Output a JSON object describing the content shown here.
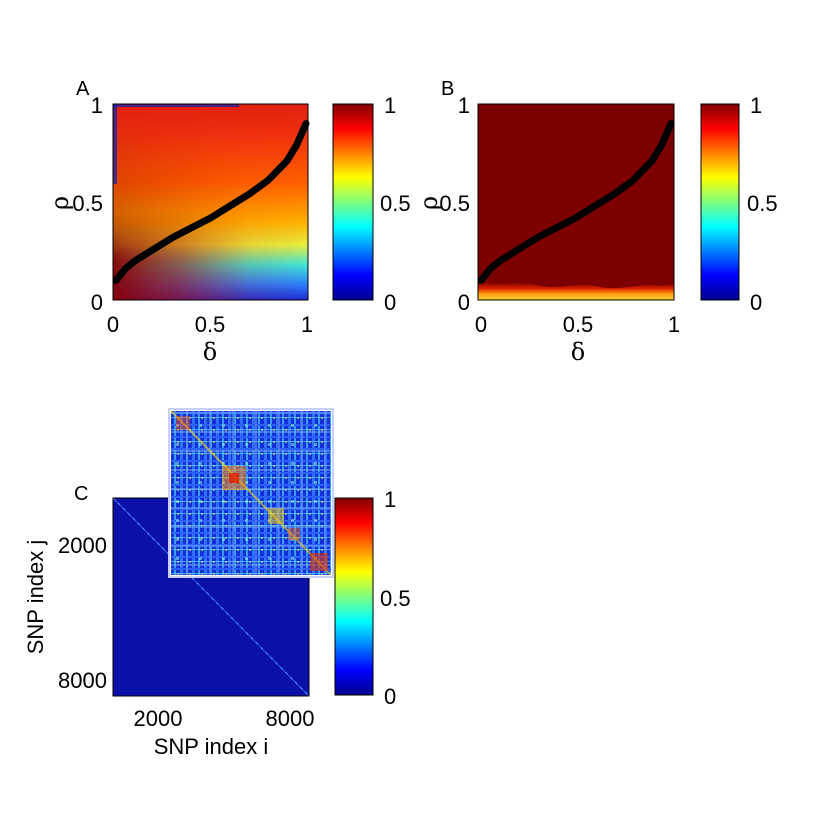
{
  "chart_data": [
    {
      "panel": "A",
      "type": "heatmap",
      "xlabel": "δ",
      "ylabel": "ρ",
      "xlim": [
        0,
        1
      ],
      "ylim": [
        0,
        1
      ],
      "x_ticks": [
        "0",
        "0.5",
        "1"
      ],
      "y_ticks": [
        "0",
        "0.5",
        "1"
      ],
      "colorbar": {
        "range": [
          0,
          1
        ],
        "ticks": [
          "0",
          "0.5",
          "1"
        ]
      },
      "transition_curve": [
        [
          0.0,
          0.1
        ],
        [
          0.05,
          0.16
        ],
        [
          0.1,
          0.2
        ],
        [
          0.2,
          0.26
        ],
        [
          0.3,
          0.32
        ],
        [
          0.4,
          0.37
        ],
        [
          0.5,
          0.42
        ],
        [
          0.6,
          0.48
        ],
        [
          0.7,
          0.54
        ],
        [
          0.8,
          0.61
        ],
        [
          0.9,
          0.71
        ],
        [
          0.95,
          0.79
        ],
        [
          1.0,
          0.9
        ]
      ]
    },
    {
      "panel": "B",
      "type": "heatmap",
      "xlabel": "δ",
      "ylabel": "ρ",
      "xlim": [
        0,
        1
      ],
      "ylim": [
        0,
        1
      ],
      "x_ticks": [
        "0",
        "0.5",
        "1"
      ],
      "y_ticks": [
        "0",
        "0.5",
        "1"
      ],
      "colorbar": {
        "range": [
          0,
          1
        ],
        "ticks": [
          "0",
          "0.5",
          "1"
        ]
      },
      "transition_curve": [
        [
          0.0,
          0.1
        ],
        [
          0.05,
          0.16
        ],
        [
          0.1,
          0.2
        ],
        [
          0.2,
          0.26
        ],
        [
          0.3,
          0.32
        ],
        [
          0.4,
          0.37
        ],
        [
          0.5,
          0.42
        ],
        [
          0.6,
          0.48
        ],
        [
          0.7,
          0.54
        ],
        [
          0.8,
          0.61
        ],
        [
          0.9,
          0.71
        ],
        [
          0.95,
          0.79
        ],
        [
          1.0,
          0.9
        ]
      ]
    },
    {
      "panel": "C",
      "type": "heatmap",
      "xlabel": "SNP index i",
      "ylabel": "SNP index j",
      "x_ticks": [
        "2000",
        "8000"
      ],
      "y_ticks": [
        "2000",
        "8000"
      ],
      "colorbar": {
        "range": [
          0,
          1
        ],
        "ticks": [
          "0",
          "0.5",
          "1"
        ]
      }
    }
  ]
}
